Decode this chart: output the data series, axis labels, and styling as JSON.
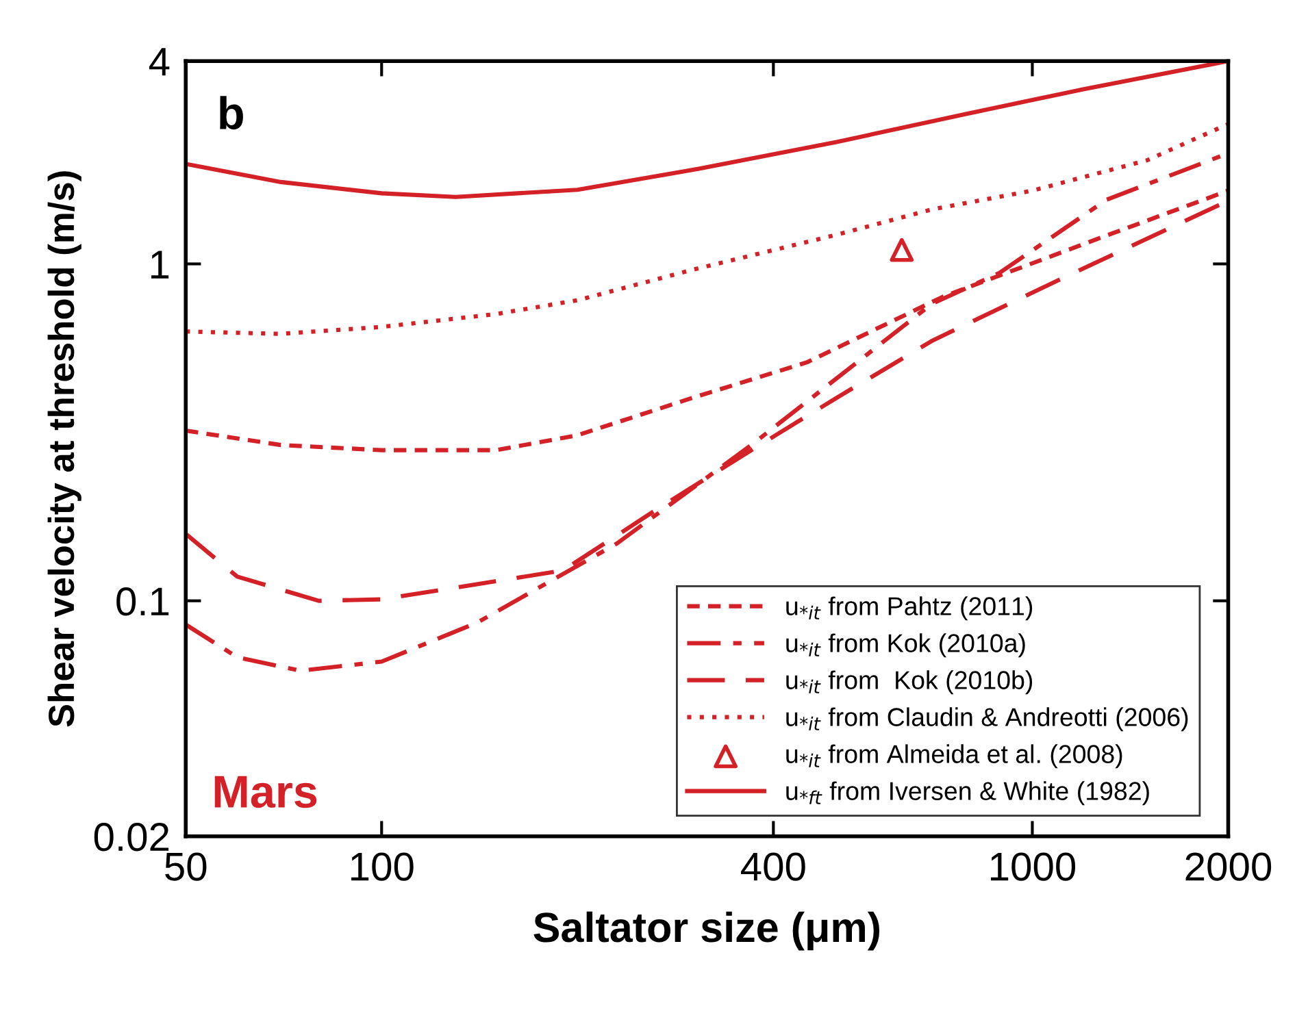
{
  "chart_data": {
    "type": "line",
    "xlabel": "Saltator size (μm)",
    "ylabel": "Shear velocity at threshold (m/s)",
    "annotations": [
      "b",
      "Mars"
    ],
    "log": "xy",
    "xlim": [
      50,
      2000
    ],
    "ylim": [
      0.02,
      4
    ],
    "xticks": [
      50,
      100,
      400,
      1000,
      2000
    ],
    "yticks": [
      0.02,
      0.1,
      1,
      4
    ],
    "legend": "bottom right",
    "grid": false,
    "series": [
      {
        "name": "u$_{*it}$ from Pahtz (2011)",
        "color": "#d42027",
        "line_style": "dashed",
        "x": [
          50,
          70,
          100,
          150,
          200,
          300,
          450,
          730,
          1250,
          2000
        ],
        "values": [
          0.32,
          0.29,
          0.28,
          0.28,
          0.31,
          0.4,
          0.51,
          0.8,
          1.18,
          1.65
        ]
      },
      {
        "name": "u$_{*it}$ from Kok (2010a)",
        "color": "#d42027",
        "line_style": "dashdot",
        "x": [
          50,
          60,
          75,
          100,
          140,
          230,
          370,
          700,
          890,
          1300,
          2000
        ],
        "values": [
          0.085,
          0.068,
          0.062,
          0.066,
          0.086,
          0.148,
          0.29,
          0.76,
          0.94,
          1.55,
          2.13
        ]
      },
      {
        "name": "u$_{*it}$ from  Kok (2010b)",
        "color": "#d42027",
        "line_style": "longdash",
        "x": [
          50,
          60,
          80,
          100,
          190,
          265,
          370,
          500,
          700,
          1130,
          2000
        ],
        "values": [
          0.158,
          0.118,
          0.1,
          0.101,
          0.123,
          0.187,
          0.28,
          0.4,
          0.59,
          0.92,
          1.54
        ]
      },
      {
        "name": "u$_{*it}$ from Claudin & Andreotti (2006)",
        "color": "#d42027",
        "line_style": "dotted",
        "x": [
          50,
          70,
          100,
          150,
          200,
          300,
          500,
          700,
          1000,
          1500,
          2000
        ],
        "values": [
          0.63,
          0.62,
          0.65,
          0.71,
          0.78,
          0.96,
          1.22,
          1.45,
          1.65,
          2.03,
          2.6
        ]
      },
      {
        "name": "u$_{*it}$ from Almeida et al. (2008)",
        "color": "#d42027",
        "type": "scatter",
        "marker": "triangle",
        "x": [
          630
        ],
        "values": [
          1.1
        ]
      },
      {
        "name": "u$_{*ft}$ from Iversen & White (1982)",
        "color": "#d42027",
        "line_style": "solid",
        "x": [
          50,
          70,
          100,
          130,
          200,
          300,
          500,
          800,
          1200,
          2000
        ],
        "values": [
          1.98,
          1.75,
          1.62,
          1.58,
          1.66,
          1.9,
          2.3,
          2.8,
          3.3,
          4.0
        ]
      }
    ]
  }
}
